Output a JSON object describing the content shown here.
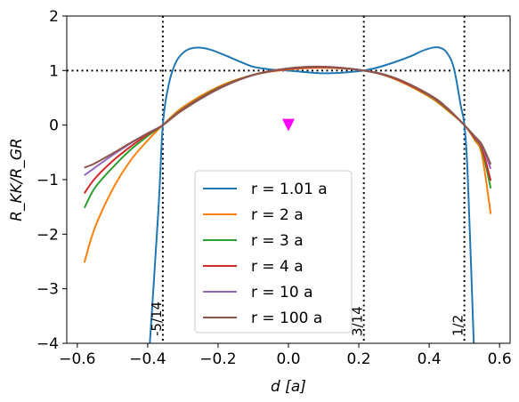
{
  "chart_data": {
    "type": "line",
    "xlabel": "d [a]",
    "ylabel": "R_KK/R_GR",
    "xlim": [
      -0.63,
      0.63
    ],
    "ylim": [
      -4,
      2
    ],
    "xticks": [
      -0.6,
      -0.4,
      -0.2,
      0.0,
      0.2,
      0.4,
      0.6
    ],
    "xtick_labels": [
      "−0.6",
      "−0.4",
      "−0.2",
      "0.0",
      "0.2",
      "0.4",
      "0.6"
    ],
    "yticks": [
      -4,
      -3,
      -2,
      -1,
      0,
      1,
      2
    ],
    "ytick_labels": [
      "−4",
      "−3",
      "−2",
      "−1",
      "0",
      "1",
      "2"
    ],
    "grid": false,
    "legend_position": "lower-center",
    "reference_lines": {
      "horizontal": [
        1
      ],
      "vertical": [
        {
          "x": -0.357,
          "label": "-5/14"
        },
        {
          "x": 0.2143,
          "label": "3/14"
        },
        {
          "x": 0.5,
          "label": "1/2"
        }
      ]
    },
    "marker": {
      "x": 0.0,
      "y": 0.0,
      "shape": "triangle-down",
      "color": "#ff00ff"
    },
    "series": [
      {
        "name": "r = 1.01 a",
        "color": "#1f77b4",
        "x": [
          -0.4,
          -0.37,
          -0.357,
          -0.34,
          -0.32,
          -0.3,
          -0.28,
          -0.25,
          -0.22,
          -0.18,
          -0.14,
          -0.1,
          -0.05,
          0.0,
          0.05,
          0.1,
          0.15,
          0.2,
          0.2143,
          0.25,
          0.3,
          0.35,
          0.38,
          0.41,
          0.43,
          0.45,
          0.47,
          0.49,
          0.5,
          0.51,
          0.53
        ],
        "y": [
          -4.6,
          -1.6,
          0.0,
          0.75,
          1.15,
          1.32,
          1.4,
          1.42,
          1.38,
          1.28,
          1.17,
          1.07,
          1.02,
          1.0,
          0.97,
          0.95,
          0.96,
          0.99,
          1.0,
          1.05,
          1.15,
          1.27,
          1.36,
          1.42,
          1.42,
          1.33,
          1.05,
          0.35,
          0.0,
          -1.0,
          -4.6
        ]
      },
      {
        "name": "r = 2 a",
        "color": "#ff7f0e",
        "x": [
          -0.58,
          -0.55,
          -0.5,
          -0.45,
          -0.4,
          -0.357,
          -0.3,
          -0.2,
          -0.1,
          0.0,
          0.1,
          0.2143,
          0.3,
          0.4,
          0.45,
          0.5,
          0.53,
          0.55,
          0.575
        ],
        "y": [
          -2.52,
          -1.88,
          -1.18,
          -0.66,
          -0.28,
          0.0,
          0.33,
          0.7,
          0.92,
          1.02,
          1.05,
          1.0,
          0.85,
          0.52,
          0.28,
          0.0,
          -0.28,
          -0.55,
          -1.63
        ]
      },
      {
        "name": "r = 3 a",
        "color": "#2ca02c",
        "x": [
          -0.58,
          -0.55,
          -0.5,
          -0.45,
          -0.4,
          -0.357,
          -0.3,
          -0.2,
          -0.1,
          0.0,
          0.1,
          0.2143,
          0.3,
          0.4,
          0.45,
          0.5,
          0.53,
          0.55,
          0.575
        ],
        "y": [
          -1.52,
          -1.15,
          -0.78,
          -0.46,
          -0.2,
          0.0,
          0.3,
          0.68,
          0.92,
          1.03,
          1.06,
          1.0,
          0.86,
          0.54,
          0.3,
          0.0,
          -0.25,
          -0.45,
          -1.16
        ]
      },
      {
        "name": "r = 4 a",
        "color": "#d62728",
        "x": [
          -0.58,
          -0.55,
          -0.5,
          -0.45,
          -0.4,
          -0.357,
          -0.3,
          -0.2,
          -0.1,
          0.0,
          0.1,
          0.2143,
          0.3,
          0.4,
          0.45,
          0.5,
          0.53,
          0.55,
          0.575
        ],
        "y": [
          -1.25,
          -0.98,
          -0.66,
          -0.4,
          -0.17,
          0.0,
          0.29,
          0.67,
          0.92,
          1.03,
          1.06,
          1.0,
          0.86,
          0.55,
          0.31,
          0.0,
          -0.24,
          -0.42,
          -1.02
        ]
      },
      {
        "name": "r = 10 a",
        "color": "#9467bd",
        "x": [
          -0.58,
          -0.55,
          -0.5,
          -0.45,
          -0.4,
          -0.357,
          -0.3,
          -0.2,
          -0.1,
          0.0,
          0.1,
          0.2143,
          0.3,
          0.4,
          0.45,
          0.5,
          0.53,
          0.55,
          0.575
        ],
        "y": [
          -0.92,
          -0.78,
          -0.55,
          -0.34,
          -0.15,
          0.0,
          0.28,
          0.66,
          0.92,
          1.04,
          1.07,
          1.0,
          0.87,
          0.56,
          0.32,
          0.0,
          -0.22,
          -0.38,
          -0.8
        ]
      },
      {
        "name": "r = 100 a",
        "color": "#8c564b",
        "x": [
          -0.58,
          -0.55,
          -0.5,
          -0.45,
          -0.4,
          -0.357,
          -0.3,
          -0.2,
          -0.1,
          0.0,
          0.1,
          0.2143,
          0.3,
          0.4,
          0.45,
          0.5,
          0.53,
          0.55,
          0.575
        ],
        "y": [
          -0.78,
          -0.7,
          -0.52,
          -0.33,
          -0.15,
          0.0,
          0.28,
          0.66,
          0.92,
          1.04,
          1.07,
          1.0,
          0.87,
          0.56,
          0.32,
          0.0,
          -0.21,
          -0.36,
          -0.72
        ]
      }
    ]
  }
}
